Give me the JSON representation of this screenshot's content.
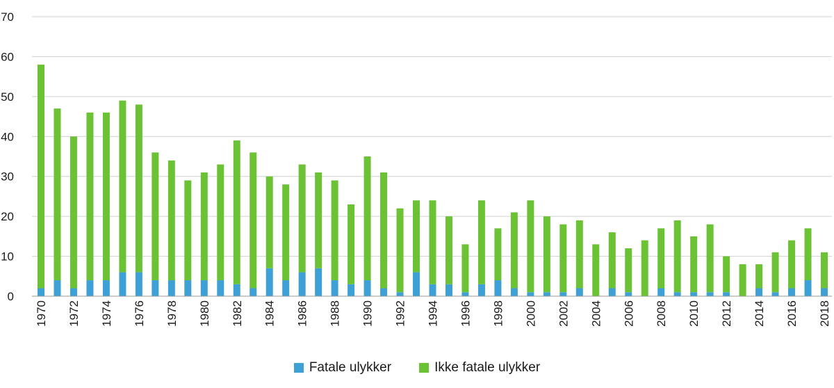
{
  "chart_data": {
    "type": "bar",
    "stacked": true,
    "ylim": [
      0,
      70
    ],
    "yticks": [
      0,
      10,
      20,
      30,
      40,
      50,
      60,
      70
    ],
    "grid": true,
    "legend_position": "bottom-center",
    "categories": [
      "1970",
      "1971",
      "1972",
      "1973",
      "1974",
      "1975",
      "1976",
      "1977",
      "1978",
      "1979",
      "1980",
      "1981",
      "1982",
      "1983",
      "1984",
      "1985",
      "1986",
      "1987",
      "1988",
      "1989",
      "1990",
      "1991",
      "1992",
      "1993",
      "1994",
      "1995",
      "1996",
      "1997",
      "1998",
      "1999",
      "2000",
      "2001",
      "2002",
      "2003",
      "2004",
      "2005",
      "2006",
      "2007",
      "2008",
      "2009",
      "2010",
      "2011",
      "2012",
      "2013",
      "2014",
      "2015",
      "2016",
      "2017",
      "2018"
    ],
    "xtick_labels": [
      "1970",
      "1972",
      "1974",
      "1976",
      "1978",
      "1980",
      "1982",
      "1984",
      "1986",
      "1988",
      "1990",
      "1992",
      "1994",
      "1996",
      "1998",
      "2000",
      "2002",
      "2004",
      "2006",
      "2008",
      "2010",
      "2012",
      "2014",
      "2016",
      "2018"
    ],
    "series": [
      {
        "name": "Fatale ulykker",
        "color": "#3fa0d6",
        "values": [
          2,
          4,
          2,
          4,
          4,
          6,
          6,
          4,
          4,
          4,
          4,
          4,
          3,
          2,
          7,
          4,
          6,
          7,
          4,
          3,
          4,
          2,
          1,
          6,
          3,
          3,
          1,
          3,
          4,
          2,
          1,
          1,
          1,
          2,
          0,
          2,
          1,
          0,
          2,
          1,
          1,
          1,
          1,
          0,
          2,
          1,
          2,
          4,
          2
        ]
      },
      {
        "name": "Ikke fatale ulykker",
        "color": "#6cc235",
        "values": [
          56,
          43,
          38,
          42,
          42,
          43,
          42,
          32,
          30,
          25,
          27,
          29,
          36,
          34,
          23,
          24,
          27,
          24,
          25,
          20,
          31,
          29,
          21,
          18,
          21,
          17,
          12,
          21,
          13,
          19,
          23,
          19,
          17,
          17,
          13,
          14,
          11,
          14,
          15,
          18,
          14,
          17,
          9,
          8,
          6,
          10,
          12,
          13,
          9
        ]
      }
    ]
  }
}
